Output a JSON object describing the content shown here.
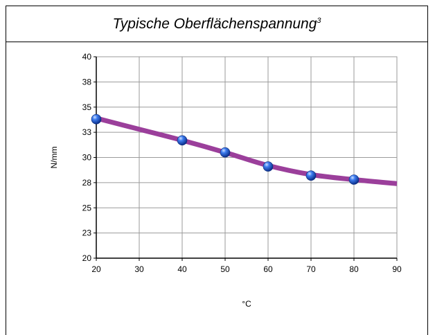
{
  "header": {
    "title": "Typische Oberflächenspannung",
    "footnote": "3"
  },
  "chart_data": {
    "type": "line",
    "xlabel": "°C",
    "ylabel": "N/mm",
    "xlim": [
      20,
      90
    ],
    "ylim": [
      20,
      40
    ],
    "x_ticks": [
      20,
      30,
      40,
      50,
      60,
      70,
      80,
      90
    ],
    "y_tick_values": [
      20,
      22.5,
      25,
      27.5,
      30,
      32.5,
      35,
      37.5,
      40
    ],
    "y_tick_labels": [
      "20",
      "23",
      "25",
      "28",
      "30",
      "33",
      "35",
      "38",
      "40"
    ],
    "grid": true,
    "series": [
      {
        "color": "#9b3f9b",
        "marker_color": "#1e5fd6",
        "points": [
          {
            "x": 20,
            "y": 33.8
          },
          {
            "x": 40,
            "y": 31.7
          },
          {
            "x": 50,
            "y": 30.5
          },
          {
            "x": 60,
            "y": 29.1
          },
          {
            "x": 70,
            "y": 28.2
          },
          {
            "x": 80,
            "y": 27.8
          }
        ],
        "trend": [
          {
            "x": 20,
            "y": 33.9
          },
          {
            "x": 30,
            "y": 32.8
          },
          {
            "x": 40,
            "y": 31.7
          },
          {
            "x": 50,
            "y": 30.5
          },
          {
            "x": 60,
            "y": 29.2
          },
          {
            "x": 70,
            "y": 28.3
          },
          {
            "x": 80,
            "y": 27.8
          },
          {
            "x": 90,
            "y": 27.4
          }
        ]
      }
    ]
  }
}
